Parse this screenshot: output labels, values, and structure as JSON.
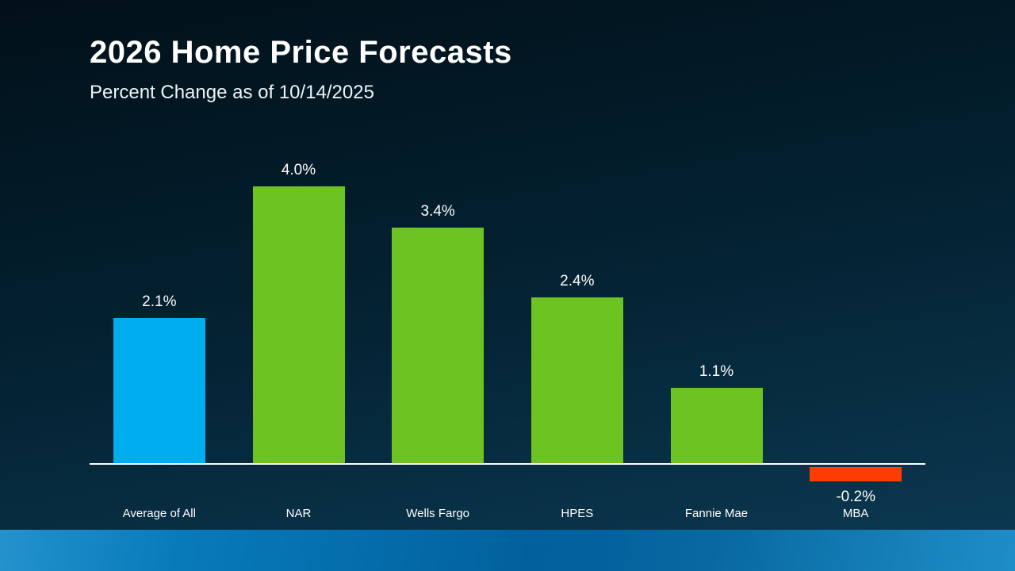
{
  "header": {
    "title": "2026 Home Price Forecasts",
    "subtitle": "Percent Change as of 10/14/2025"
  },
  "chart_data": {
    "type": "bar",
    "title": "2026 Home Price Forecasts",
    "subtitle": "Percent Change as of 10/14/2025",
    "categories": [
      "Average of All",
      "NAR",
      "Wells Fargo",
      "HPES",
      "Fannie Mae",
      "MBA"
    ],
    "values": [
      2.1,
      4.0,
      3.4,
      2.4,
      1.1,
      -0.2
    ],
    "value_labels": [
      "2.1%",
      "4.0%",
      "3.4%",
      "2.4%",
      "1.1%",
      "-0.2%"
    ],
    "bar_colors": [
      "#00AEEF",
      "#6CC321",
      "#6CC321",
      "#6CC321",
      "#6CC321",
      "#FF3D00"
    ],
    "ylim": [
      -0.5,
      4.5
    ],
    "xlabel": "",
    "ylabel": "",
    "grid": false,
    "legend": false,
    "axis_line_color": "#FFFFFF"
  },
  "colors": {
    "accent_blue": "#00AEEF",
    "accent_green": "#6CC321",
    "accent_orange": "#FF3D00",
    "background_top": "#021019",
    "background_bottom": "#0C3A54",
    "footer_band_blue": "#0777B7",
    "text": "#FFFFFF"
  }
}
